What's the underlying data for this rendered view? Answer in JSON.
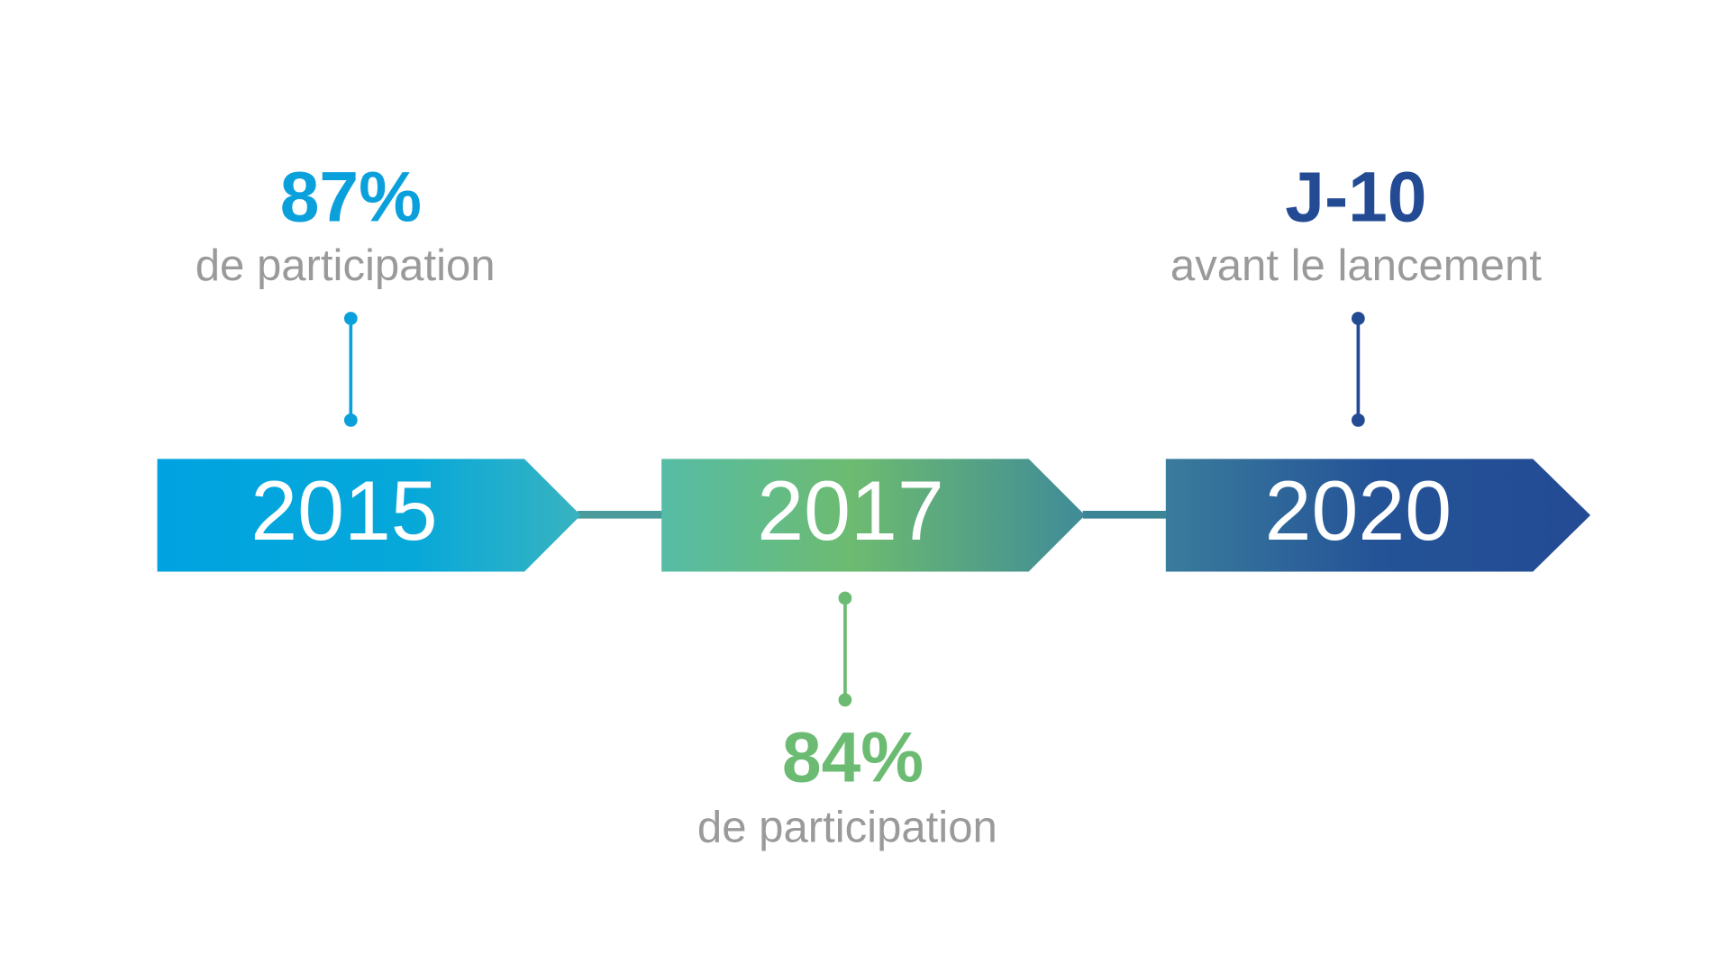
{
  "steps": [
    {
      "year": "2015",
      "stat": "87%",
      "caption": "de participation"
    },
    {
      "year": "2017",
      "stat": "84%",
      "caption": "de participation"
    },
    {
      "year": "2020",
      "stat": "J-10",
      "caption": "avant le lancement"
    }
  ]
}
